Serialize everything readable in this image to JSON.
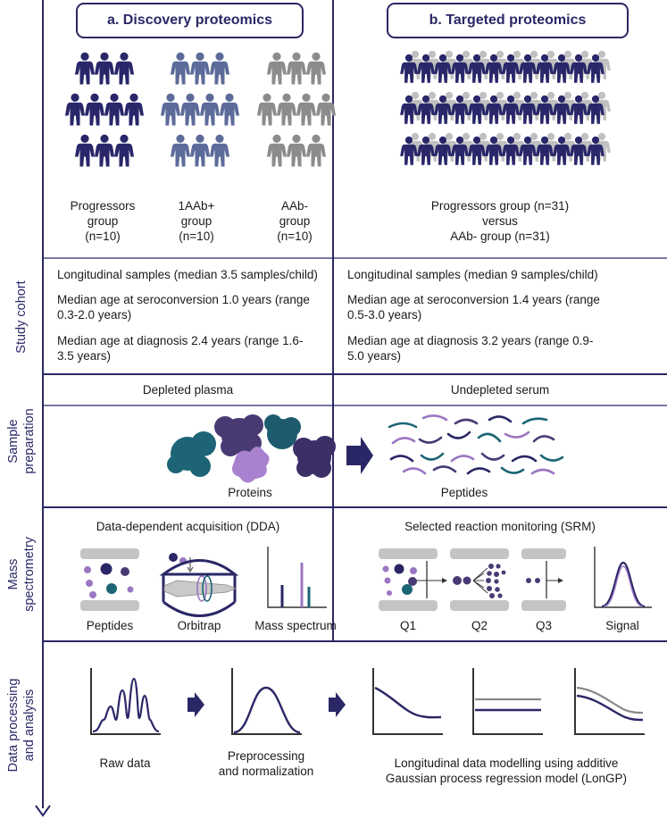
{
  "panels": {
    "a_title": "a. Discovery proteomics",
    "b_title": "b. Targeted proteomics"
  },
  "rows": {
    "study_cohort": "Study cohort",
    "sample_prep_1": "Sample",
    "sample_prep_2": "preparation",
    "mass_spec_1": "Mass",
    "mass_spec_2": "spectrometry",
    "data_proc_1": "Data processing",
    "data_proc_2": "and analysis"
  },
  "cohort_a": {
    "g1": [
      "Progressors",
      "group",
      "(n=10)"
    ],
    "g2": [
      "1AAb+",
      "group",
      "(n=10)"
    ],
    "g3": [
      "AAb-",
      "group",
      "(n=10)"
    ],
    "longitudinal": "Longitudinal samples (median 3.5 samples/child)",
    "seroconv": [
      "Median age at seroconversion 1.0 years (range",
      "0.3-2.0 years)"
    ],
    "diagnosis": [
      "Median age at diagnosis 2.4 years (range 1.6-",
      "3.5 years)"
    ]
  },
  "cohort_b": {
    "groups": [
      "Progressors group (n=31)",
      "versus",
      "AAb- group (n=31)"
    ],
    "longitudinal": "Longitudinal samples (median 9 samples/child)",
    "seroconv": [
      "Median age at seroconversion 1.4 years (range",
      "0.5-3.0 years)"
    ],
    "diagnosis": [
      "Median age at diagnosis 3.2 years (range 0.9-",
      "5.0 years)"
    ]
  },
  "prep": {
    "a_label": "Depleted plasma",
    "b_label": "Undepleted serum",
    "proteins": "Proteins",
    "peptides": "Peptides"
  },
  "ms": {
    "a_title": "Data-dependent acquisition (DDA)",
    "b_title": "Selected reaction monitoring (SRM)",
    "peptides": "Peptides",
    "orbitrap": "Orbitrap",
    "mass_spectrum": "Mass spectrum",
    "q1": "Q1",
    "q2": "Q2",
    "q3": "Q3",
    "signal": "Signal"
  },
  "analysis": {
    "raw": "Raw data",
    "prep": [
      "Preprocessing",
      "and normalization"
    ],
    "model": [
      "Longitudinal data modelling using additive",
      "Gaussian process regression model (LonGP)"
    ]
  },
  "colors": {
    "navy": "#2a2766",
    "progressor": "#29276a",
    "single_aab": "#5d6b9a",
    "aab_neg": "#8c8c8c",
    "light_grey": "#c0c0c0",
    "purple": "#9b76c2",
    "teal": "#1d6576",
    "dark_purple": "#4a3a74"
  }
}
